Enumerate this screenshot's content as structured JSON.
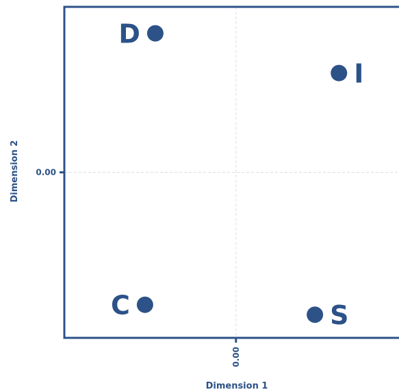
{
  "chart_data": {
    "type": "scatter",
    "xlabel": "Dimension 1",
    "ylabel": "Dimension 2",
    "xticks": [
      "0.00"
    ],
    "yticks": [
      "0.00"
    ],
    "xlim": [
      -1.0,
      0.95
    ],
    "ylim": [
      -1.0,
      1.0
    ],
    "grid": true,
    "points": [
      {
        "label": "D",
        "x": -0.47,
        "y": 0.84,
        "label_side": "left"
      },
      {
        "label": "I",
        "x": 0.6,
        "y": 0.6,
        "label_side": "right"
      },
      {
        "label": "C",
        "x": -0.53,
        "y": -0.8,
        "label_side": "left"
      },
      {
        "label": "S",
        "x": 0.46,
        "y": -0.86,
        "label_side": "right"
      }
    ],
    "colors": {
      "point": "#2c5288",
      "axis": "#2c5288",
      "grid": "#d9dde5"
    }
  }
}
